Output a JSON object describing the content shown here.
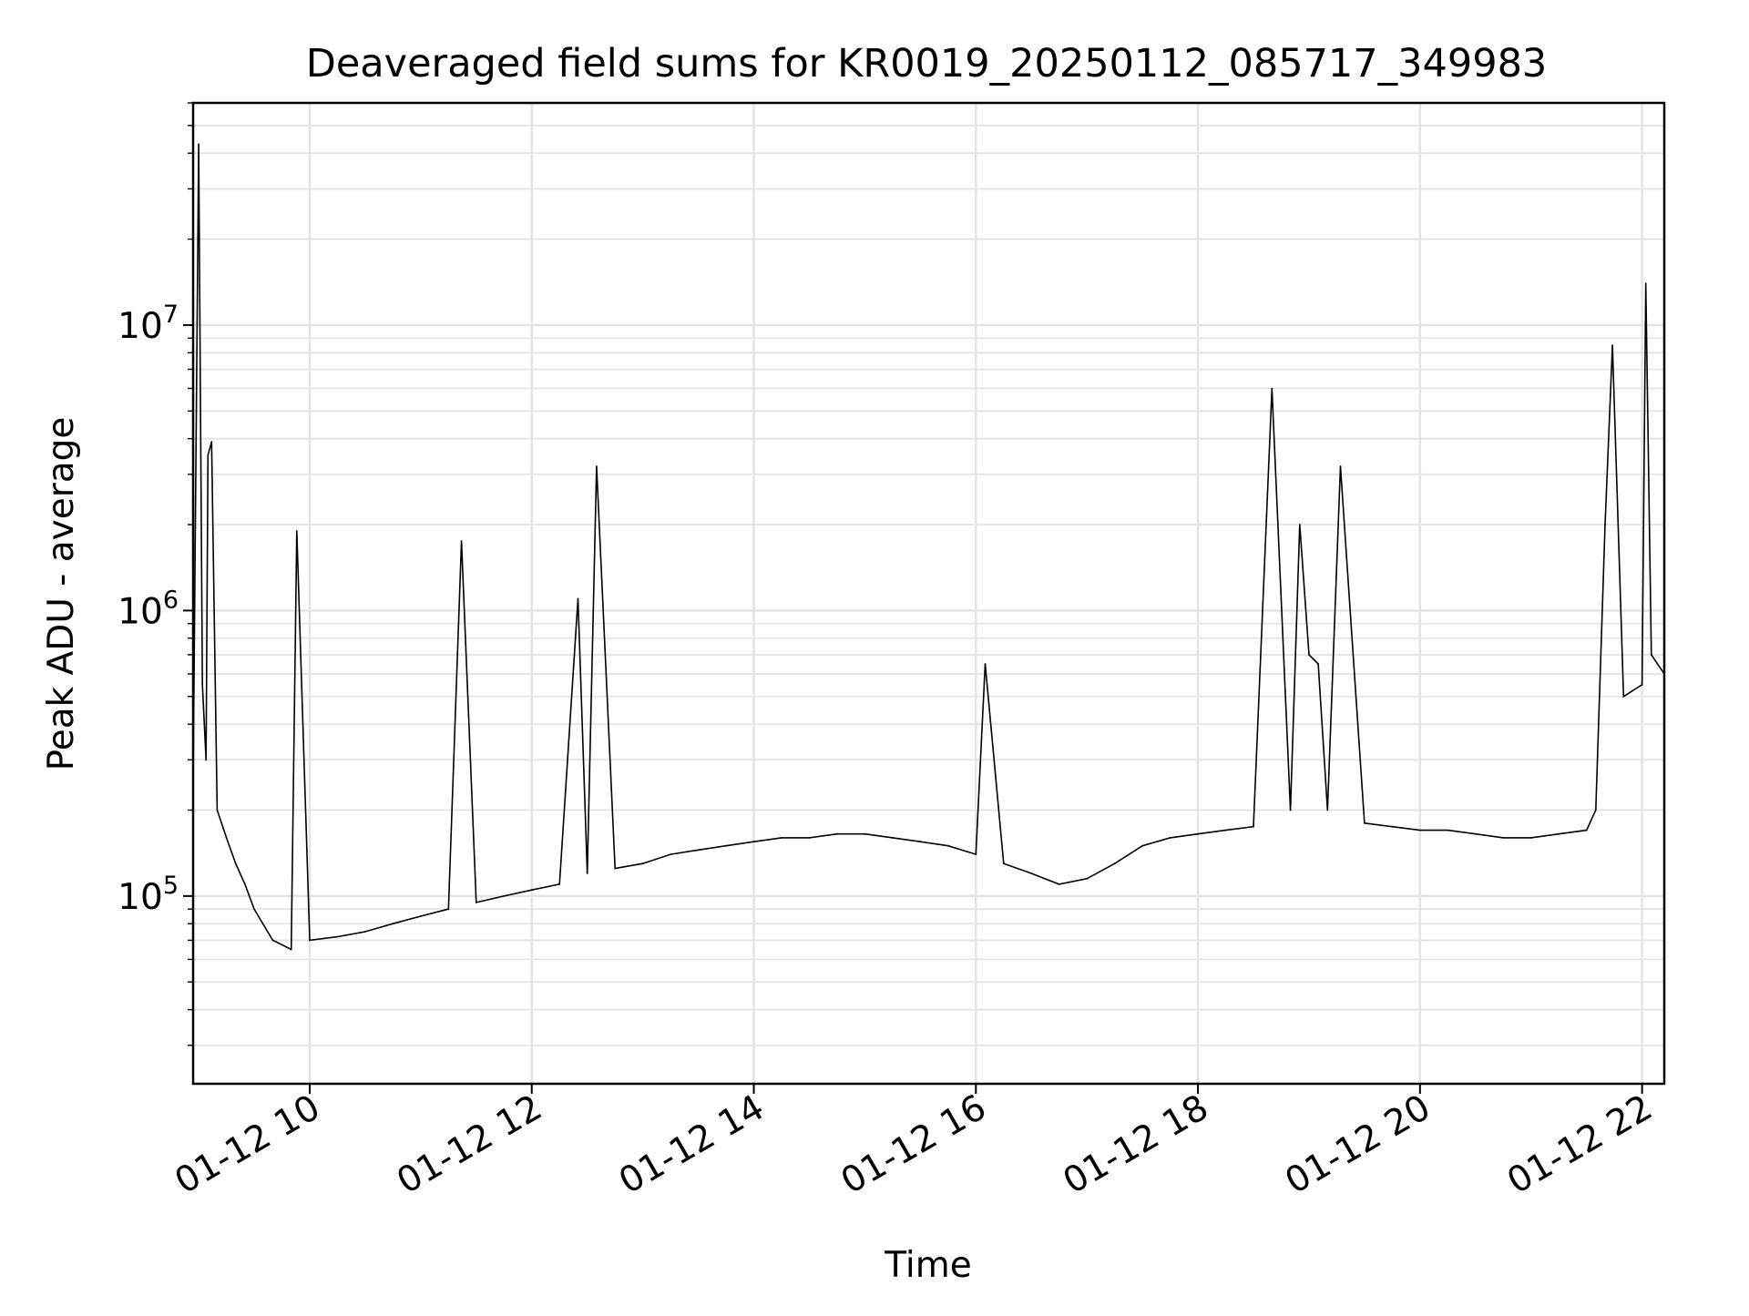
{
  "chart_data": {
    "type": "line",
    "title": "Deaveraged field sums for KR0019_20250112_085717_349983",
    "xlabel": "Time",
    "ylabel": "Peak ADU - average",
    "x_axis": {
      "kind": "datetime",
      "range": [
        "2025-01-12 08:57",
        "2025-01-12 22:12"
      ],
      "ticks": [
        "01-12 10",
        "01-12 12",
        "01-12 14",
        "01-12 16",
        "01-12 18",
        "01-12 20",
        "01-12 22"
      ]
    },
    "y_axis": {
      "scale": "log",
      "range": [
        22000,
        60000000
      ],
      "ticks": [
        {
          "value": 100000,
          "base": "10",
          "exp": "5"
        },
        {
          "value": 1000000,
          "base": "10",
          "exp": "6"
        },
        {
          "value": 10000000,
          "base": "10",
          "exp": "7"
        }
      ]
    },
    "grid": true,
    "line_color": "#000000",
    "series": [
      {
        "x": [
          "2025-01-12 08:57",
          "2025-01-12 09:00",
          "2025-01-12 09:02",
          "2025-01-12 09:04",
          "2025-01-12 09:05",
          "2025-01-12 09:07",
          "2025-01-12 09:10",
          "2025-01-12 09:15",
          "2025-01-12 09:20",
          "2025-01-12 09:25",
          "2025-01-12 09:30",
          "2025-01-12 09:40",
          "2025-01-12 09:50",
          "2025-01-12 09:53",
          "2025-01-12 10:00",
          "2025-01-12 10:15",
          "2025-01-12 10:30",
          "2025-01-12 10:45",
          "2025-01-12 11:00",
          "2025-01-12 11:15",
          "2025-01-12 11:22",
          "2025-01-12 11:30",
          "2025-01-12 11:45",
          "2025-01-12 12:00",
          "2025-01-12 12:15",
          "2025-01-12 12:25",
          "2025-01-12 12:30",
          "2025-01-12 12:35",
          "2025-01-12 12:45",
          "2025-01-12 13:00",
          "2025-01-12 13:15",
          "2025-01-12 13:30",
          "2025-01-12 13:45",
          "2025-01-12 14:00",
          "2025-01-12 14:15",
          "2025-01-12 14:30",
          "2025-01-12 14:45",
          "2025-01-12 15:00",
          "2025-01-12 15:15",
          "2025-01-12 15:30",
          "2025-01-12 15:45",
          "2025-01-12 16:00",
          "2025-01-12 16:05",
          "2025-01-12 16:15",
          "2025-01-12 16:30",
          "2025-01-12 16:45",
          "2025-01-12 17:00",
          "2025-01-12 17:15",
          "2025-01-12 17:30",
          "2025-01-12 17:45",
          "2025-01-12 18:00",
          "2025-01-12 18:15",
          "2025-01-12 18:30",
          "2025-01-12 18:40",
          "2025-01-12 18:50",
          "2025-01-12 18:55",
          "2025-01-12 19:00",
          "2025-01-12 19:05",
          "2025-01-12 19:10",
          "2025-01-12 19:17",
          "2025-01-12 19:30",
          "2025-01-12 19:45",
          "2025-01-12 20:00",
          "2025-01-12 20:15",
          "2025-01-12 20:30",
          "2025-01-12 20:45",
          "2025-01-12 21:00",
          "2025-01-12 21:15",
          "2025-01-12 21:30",
          "2025-01-12 21:35",
          "2025-01-12 21:40",
          "2025-01-12 21:44",
          "2025-01-12 21:50",
          "2025-01-12 22:00",
          "2025-01-12 22:02",
          "2025-01-12 22:05",
          "2025-01-12 22:12"
        ],
        "y": [
          250000,
          43000000,
          550000,
          300000,
          3500000,
          3900000,
          200000,
          160000,
          130000,
          110000,
          90000,
          70000,
          65000,
          1900000,
          70000,
          72000,
          75000,
          80000,
          85000,
          90000,
          1750000,
          95000,
          100000,
          105000,
          110000,
          1100000,
          120000,
          3200000,
          125000,
          130000,
          140000,
          145000,
          150000,
          155000,
          160000,
          160000,
          165000,
          165000,
          160000,
          155000,
          150000,
          140000,
          650000,
          130000,
          120000,
          110000,
          115000,
          130000,
          150000,
          160000,
          165000,
          170000,
          175000,
          6000000,
          200000,
          2000000,
          700000,
          650000,
          200000,
          3200000,
          180000,
          175000,
          170000,
          170000,
          165000,
          160000,
          160000,
          165000,
          170000,
          200000,
          2000000,
          8500000,
          500000,
          550000,
          14000000,
          700000,
          600000
        ]
      }
    ]
  }
}
